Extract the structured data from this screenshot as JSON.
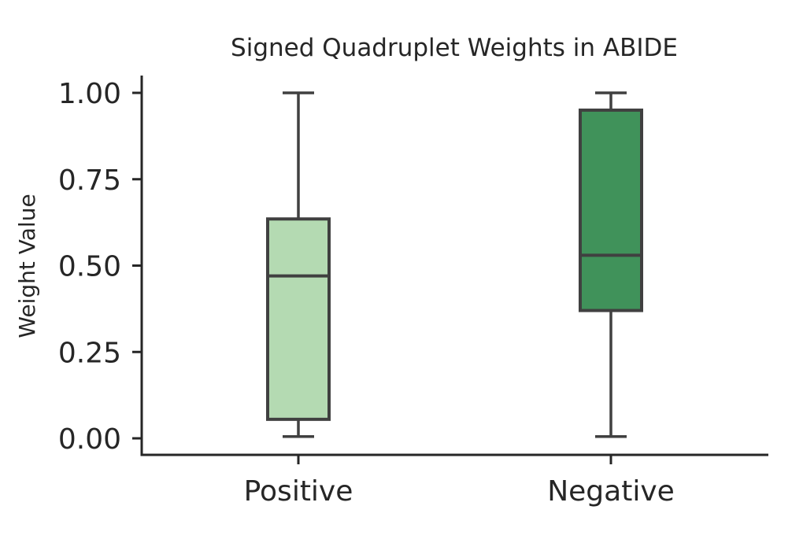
{
  "chart_data": {
    "type": "box",
    "title": "Signed Quadruplet Weights in ABIDE",
    "xlabel": "",
    "ylabel": "Weight Value",
    "ylim": [
      -0.05,
      1.05
    ],
    "yticks": [
      0.0,
      0.25,
      0.5,
      0.75,
      1.0
    ],
    "ytick_labels": [
      "0.00",
      "0.25",
      "0.50",
      "0.75",
      "1.00"
    ],
    "categories": [
      "Positive",
      "Negative"
    ],
    "boxes": [
      {
        "category": "Positive",
        "whisker_low": 0.005,
        "q1": 0.055,
        "median": 0.47,
        "q3": 0.635,
        "whisker_high": 1.0,
        "color": "#b4dab2"
      },
      {
        "category": "Negative",
        "whisker_low": 0.005,
        "q1": 0.37,
        "median": 0.53,
        "q3": 0.95,
        "whisker_high": 1.0,
        "color": "#40925a"
      }
    ],
    "grid": false,
    "legend": "none"
  }
}
